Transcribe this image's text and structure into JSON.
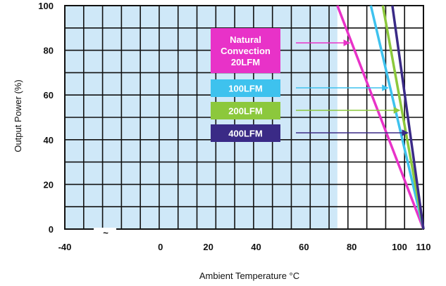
{
  "chart_data": {
    "type": "line",
    "title": "",
    "xlabel": "Ambient Temperature  °C",
    "ylabel": "Output Power  (%)",
    "xlim": [
      -40,
      110
    ],
    "ylim": [
      0,
      100
    ],
    "x_ticks": [
      "-40",
      "0",
      "20",
      "40",
      "60",
      "80",
      "100",
      "110"
    ],
    "x_tick_values": [
      -40,
      0,
      20,
      40,
      60,
      80,
      100,
      110
    ],
    "y_ticks": [
      "0",
      "20",
      "40",
      "60",
      "80",
      "100"
    ],
    "y_tick_values": [
      0,
      20,
      40,
      60,
      80,
      100
    ],
    "grid": true,
    "axis_break_symbol": "~",
    "shaded_region": {
      "x": [
        -40,
        74
      ],
      "color": "#cfe8f8"
    },
    "series": [
      {
        "name": "Natural Convection 20LFM",
        "label_lines": [
          "Natural",
          "Convection",
          "20LFM"
        ],
        "color": "#e832c8",
        "x": [
          74,
          110
        ],
        "y": [
          100,
          0
        ]
      },
      {
        "name": "100LFM",
        "label_lines": [
          "100LFM"
        ],
        "color": "#3ec2ee",
        "x": [
          88,
          110
        ],
        "y": [
          100,
          0
        ]
      },
      {
        "name": "200LFM",
        "label_lines": [
          "200LFM"
        ],
        "color": "#8cc83c",
        "x": [
          93,
          110
        ],
        "y": [
          100,
          0
        ]
      },
      {
        "name": "400LFM",
        "label_lines": [
          "400LFM"
        ],
        "color": "#3a2a86",
        "x": [
          97,
          110
        ],
        "y": [
          100,
          0
        ]
      }
    ]
  }
}
